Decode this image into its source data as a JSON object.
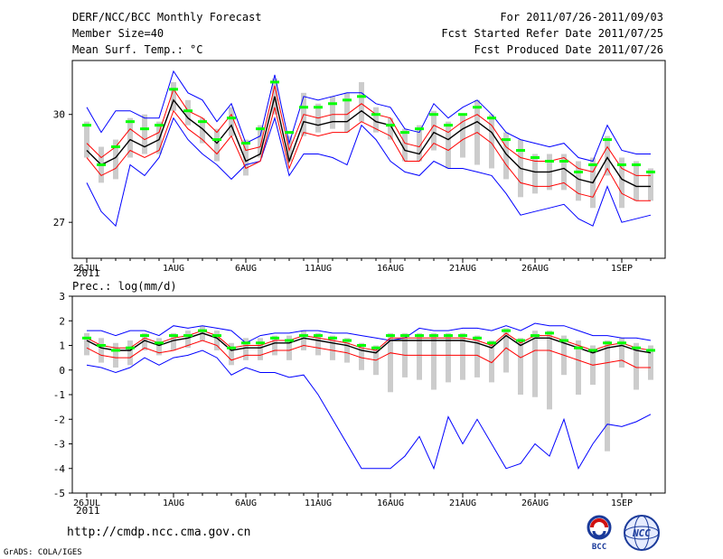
{
  "header": {
    "title": "DERF/NCC/BCC Monthly Forecast",
    "member_size": "Member Size=40",
    "variable": "Mean Surf. Temp.: °C",
    "period": "For 2011/07/26-2011/09/03",
    "refer_date": "Fcst Started Refer Date 2011/07/25",
    "produced_date": "Fcst Produced Date 2011/07/26"
  },
  "footer": {
    "url": "http://cmdp.ncc.cma.gov.cn",
    "credit": "GrADS: COLA/IGES",
    "logo1": "BCC",
    "logo2": "NCC"
  },
  "colors": {
    "envelope": "#0000ff",
    "spread": "#ff0000",
    "mean": "#000000",
    "obs": "#00ff00",
    "bar": "#cccccc"
  },
  "chart_data": [
    {
      "type": "line",
      "title": "Mean Surf. Temp.: °C",
      "xlabel": "",
      "ylabel": "",
      "x_tick_labels": [
        "26JUL",
        "1AUG",
        "6AUG",
        "11AUG",
        "16AUG",
        "21AUG",
        "26AUG",
        "1SEP"
      ],
      "x_tick_days": [
        1,
        7,
        12,
        17,
        22,
        27,
        32,
        38
      ],
      "x_sublabel": "2011",
      "xlim": [
        0,
        41
      ],
      "y_ticks": [
        27,
        30
      ],
      "ylim": [
        26.0,
        31.5
      ],
      "x": [
        1,
        2,
        3,
        4,
        5,
        6,
        7,
        8,
        9,
        10,
        11,
        12,
        13,
        14,
        15,
        16,
        17,
        18,
        19,
        20,
        21,
        22,
        23,
        24,
        25,
        26,
        27,
        28,
        29,
        30,
        31,
        32,
        33,
        34,
        35,
        36,
        37,
        38,
        39,
        40
      ],
      "series": [
        {
          "name": "max",
          "values": [
            30.2,
            29.5,
            30.1,
            30.1,
            29.9,
            29.9,
            31.2,
            30.6,
            30.4,
            29.8,
            30.3,
            29.2,
            29.4,
            31.1,
            29.2,
            30.5,
            30.4,
            30.5,
            30.6,
            30.6,
            30.3,
            30.2,
            29.6,
            29.5,
            30.3,
            29.9,
            30.2,
            30.4,
            30.0,
            29.5,
            29.3,
            29.2,
            29.1,
            29.2,
            28.8,
            28.7,
            29.7,
            29.0,
            28.9,
            28.9
          ]
        },
        {
          "name": "upper",
          "values": [
            29.2,
            28.8,
            29.1,
            29.6,
            29.3,
            29.5,
            30.7,
            30.1,
            29.9,
            29.5,
            30.0,
            29.0,
            29.1,
            30.8,
            29.0,
            30.0,
            29.9,
            30.0,
            30.0,
            30.3,
            30.0,
            29.9,
            29.2,
            29.1,
            29.7,
            29.5,
            29.8,
            30.0,
            29.7,
            29.1,
            28.8,
            28.7,
            28.7,
            28.8,
            28.5,
            28.4,
            29.1,
            28.5,
            28.3,
            28.3
          ]
        },
        {
          "name": "mean",
          "values": [
            29.0,
            28.6,
            28.8,
            29.3,
            29.1,
            29.3,
            30.4,
            29.9,
            29.6,
            29.2,
            29.7,
            28.7,
            28.9,
            30.5,
            28.7,
            29.8,
            29.7,
            29.8,
            29.8,
            30.1,
            29.8,
            29.7,
            29.0,
            28.9,
            29.5,
            29.3,
            29.6,
            29.8,
            29.5,
            28.9,
            28.5,
            28.4,
            28.4,
            28.5,
            28.2,
            28.1,
            28.8,
            28.2,
            28.0,
            28.0
          ]
        },
        {
          "name": "lower",
          "values": [
            28.8,
            28.3,
            28.5,
            29.0,
            28.8,
            29.0,
            30.1,
            29.6,
            29.3,
            28.9,
            29.4,
            28.5,
            28.7,
            30.2,
            28.5,
            29.5,
            29.4,
            29.5,
            29.5,
            29.8,
            29.6,
            29.4,
            28.7,
            28.7,
            29.2,
            29.0,
            29.3,
            29.5,
            29.2,
            28.6,
            28.1,
            28.0,
            28.0,
            28.1,
            27.8,
            27.7,
            28.5,
            27.8,
            27.6,
            27.6
          ]
        },
        {
          "name": "min",
          "values": [
            28.1,
            27.3,
            26.9,
            28.6,
            28.3,
            28.8,
            29.9,
            29.3,
            28.9,
            28.6,
            28.2,
            28.6,
            28.7,
            29.9,
            28.3,
            28.9,
            28.9,
            28.8,
            28.6,
            29.7,
            29.3,
            28.7,
            28.4,
            28.3,
            28.7,
            28.5,
            28.5,
            28.4,
            28.3,
            27.8,
            27.2,
            27.3,
            27.4,
            27.5,
            27.1,
            26.9,
            28.0,
            27.0,
            27.1,
            27.2
          ]
        },
        {
          "name": "obs",
          "values": [
            29.7,
            28.6,
            29.1,
            29.8,
            29.6,
            29.7,
            30.7,
            30.1,
            29.8,
            29.3,
            29.9,
            29.2,
            29.6,
            30.9,
            29.5,
            30.2,
            30.2,
            30.3,
            30.4,
            30.5,
            30.0,
            29.7,
            29.5,
            29.6,
            30.0,
            29.7,
            30.0,
            30.2,
            29.9,
            29.3,
            29.0,
            28.8,
            28.7,
            28.7,
            28.4,
            28.6,
            29.3,
            28.6,
            28.6,
            28.4
          ]
        },
        {
          "name": "bar_top",
          "values": [
            29.8,
            29.1,
            29.3,
            29.9,
            30.0,
            29.8,
            30.9,
            30.4,
            29.9,
            29.6,
            30.2,
            29.3,
            29.7,
            31.0,
            29.4,
            30.6,
            30.3,
            30.5,
            30.6,
            30.9,
            30.2,
            29.9,
            29.6,
            29.7,
            30.1,
            29.8,
            30.0,
            30.4,
            30.0,
            29.5,
            29.3,
            28.9,
            28.9,
            28.9,
            28.7,
            28.8,
            29.4,
            28.8,
            28.7,
            28.5
          ]
        },
        {
          "name": "bar_bottom",
          "values": [
            28.8,
            28.1,
            28.2,
            28.8,
            28.9,
            28.9,
            30.1,
            29.7,
            29.2,
            28.7,
            29.4,
            28.3,
            28.8,
            30.0,
            28.7,
            29.4,
            29.5,
            29.6,
            29.5,
            29.8,
            29.5,
            29.3,
            28.7,
            28.7,
            29.0,
            28.5,
            28.8,
            28.6,
            28.5,
            28.2,
            27.7,
            27.8,
            27.9,
            27.9,
            27.6,
            27.4,
            28.3,
            27.4,
            27.6,
            27.6
          ]
        }
      ]
    },
    {
      "type": "line",
      "title": "Prec.: log(mm/d)",
      "xlabel": "",
      "ylabel": "",
      "x_tick_labels": [
        "26JUL",
        "1AUG",
        "6AUG",
        "11AUG",
        "16AUG",
        "21AUG",
        "26AUG",
        "1SEP"
      ],
      "x_tick_days": [
        1,
        7,
        12,
        17,
        22,
        27,
        32,
        38
      ],
      "x_sublabel": "2011",
      "xlim": [
        0,
        41
      ],
      "y_ticks": [
        -5,
        -4,
        -3,
        -2,
        -1,
        0,
        1,
        2,
        3
      ],
      "ylim": [
        -5,
        3
      ],
      "x": [
        1,
        2,
        3,
        4,
        5,
        6,
        7,
        8,
        9,
        10,
        11,
        12,
        13,
        14,
        15,
        16,
        17,
        18,
        19,
        20,
        21,
        22,
        23,
        24,
        25,
        26,
        27,
        28,
        29,
        30,
        31,
        32,
        33,
        34,
        35,
        36,
        37,
        38,
        39,
        40
      ],
      "series": [
        {
          "name": "max",
          "values": [
            1.6,
            1.6,
            1.4,
            1.6,
            1.6,
            1.4,
            1.8,
            1.7,
            1.8,
            1.7,
            1.6,
            1.1,
            1.4,
            1.5,
            1.5,
            1.6,
            1.6,
            1.5,
            1.5,
            1.4,
            1.3,
            1.2,
            1.3,
            1.7,
            1.6,
            1.6,
            1.7,
            1.7,
            1.6,
            1.8,
            1.6,
            1.9,
            1.8,
            1.8,
            1.6,
            1.4,
            1.4,
            1.3,
            1.3,
            1.2
          ]
        },
        {
          "name": "upper",
          "values": [
            1.3,
            1.0,
            0.9,
            0.9,
            1.3,
            1.1,
            1.3,
            1.4,
            1.6,
            1.4,
            0.9,
            1.0,
            1.0,
            1.2,
            1.2,
            1.4,
            1.3,
            1.2,
            1.1,
            0.9,
            0.8,
            1.3,
            1.3,
            1.3,
            1.3,
            1.3,
            1.3,
            1.2,
            1.0,
            1.5,
            1.1,
            1.4,
            1.4,
            1.2,
            1.0,
            0.8,
            1.0,
            1.1,
            0.9,
            0.8
          ]
        },
        {
          "name": "mean",
          "values": [
            1.2,
            0.9,
            0.8,
            0.8,
            1.2,
            1.0,
            1.2,
            1.3,
            1.5,
            1.3,
            0.8,
            0.9,
            0.9,
            1.1,
            1.1,
            1.3,
            1.2,
            1.1,
            1.0,
            0.8,
            0.7,
            1.2,
            1.2,
            1.2,
            1.2,
            1.2,
            1.2,
            1.1,
            0.9,
            1.4,
            1.0,
            1.3,
            1.3,
            1.1,
            0.9,
            0.7,
            0.9,
            1.0,
            0.8,
            0.7
          ]
        },
        {
          "name": "lower",
          "values": [
            0.9,
            0.6,
            0.5,
            0.5,
            0.9,
            0.7,
            0.8,
            1.0,
            1.2,
            1.0,
            0.4,
            0.6,
            0.6,
            0.8,
            0.8,
            1.0,
            0.9,
            0.8,
            0.7,
            0.5,
            0.4,
            0.7,
            0.6,
            0.6,
            0.6,
            0.6,
            0.6,
            0.6,
            0.3,
            0.9,
            0.5,
            0.8,
            0.8,
            0.6,
            0.4,
            0.2,
            0.3,
            0.4,
            0.1,
            0.1
          ]
        },
        {
          "name": "min",
          "values": [
            0.2,
            0.1,
            -0.1,
            0.1,
            0.5,
            0.2,
            0.5,
            0.6,
            0.8,
            0.5,
            -0.2,
            0.1,
            -0.1,
            -0.1,
            -0.3,
            -0.2,
            -1.0,
            -2.0,
            -3.0,
            -4.0,
            -4.0,
            -4.0,
            -3.5,
            -2.7,
            -4.0,
            -1.9,
            -3.0,
            -2.0,
            -3.0,
            -4.0,
            -3.8,
            -3.0,
            -3.5,
            -2.0,
            -4.0,
            -3.0,
            -2.2,
            -2.3,
            -2.1,
            -1.8
          ]
        },
        {
          "name": "obs",
          "values": [
            1.3,
            1.0,
            0.8,
            0.9,
            1.4,
            1.1,
            1.4,
            1.4,
            1.6,
            1.4,
            0.9,
            1.1,
            1.1,
            1.3,
            1.2,
            1.4,
            1.4,
            1.3,
            1.2,
            1.0,
            0.9,
            1.4,
            1.4,
            1.4,
            1.4,
            1.4,
            1.4,
            1.3,
            1.1,
            1.6,
            1.2,
            1.4,
            1.5,
            1.2,
            0.9,
            0.8,
            1.1,
            1.1,
            0.9,
            0.8
          ]
        },
        {
          "name": "bar_top",
          "values": [
            1.5,
            1.3,
            1.1,
            1.2,
            1.5,
            1.3,
            1.5,
            1.6,
            1.8,
            1.6,
            1.1,
            1.3,
            1.3,
            1.4,
            1.4,
            1.6,
            1.5,
            1.4,
            1.3,
            1.1,
            1.0,
            1.5,
            1.5,
            1.5,
            1.5,
            1.5,
            1.5,
            1.4,
            1.2,
            1.7,
            1.3,
            1.6,
            1.6,
            1.4,
            1.2,
            1.0,
            1.2,
            1.3,
            1.1,
            1.0
          ]
        },
        {
          "name": "bar_bottom",
          "values": [
            0.6,
            0.3,
            0.1,
            0.2,
            0.8,
            0.6,
            0.8,
            0.9,
            1.2,
            0.8,
            0.2,
            0.4,
            0.4,
            0.6,
            0.4,
            0.8,
            0.6,
            0.4,
            0.3,
            0.0,
            -0.2,
            -0.9,
            -0.3,
            -0.4,
            -0.8,
            -0.5,
            -0.4,
            -0.3,
            -0.5,
            -0.1,
            -1.0,
            -1.1,
            -1.6,
            -0.2,
            -1.0,
            -0.6,
            -3.3,
            0.1,
            -0.8,
            -0.4
          ]
        }
      ]
    }
  ]
}
